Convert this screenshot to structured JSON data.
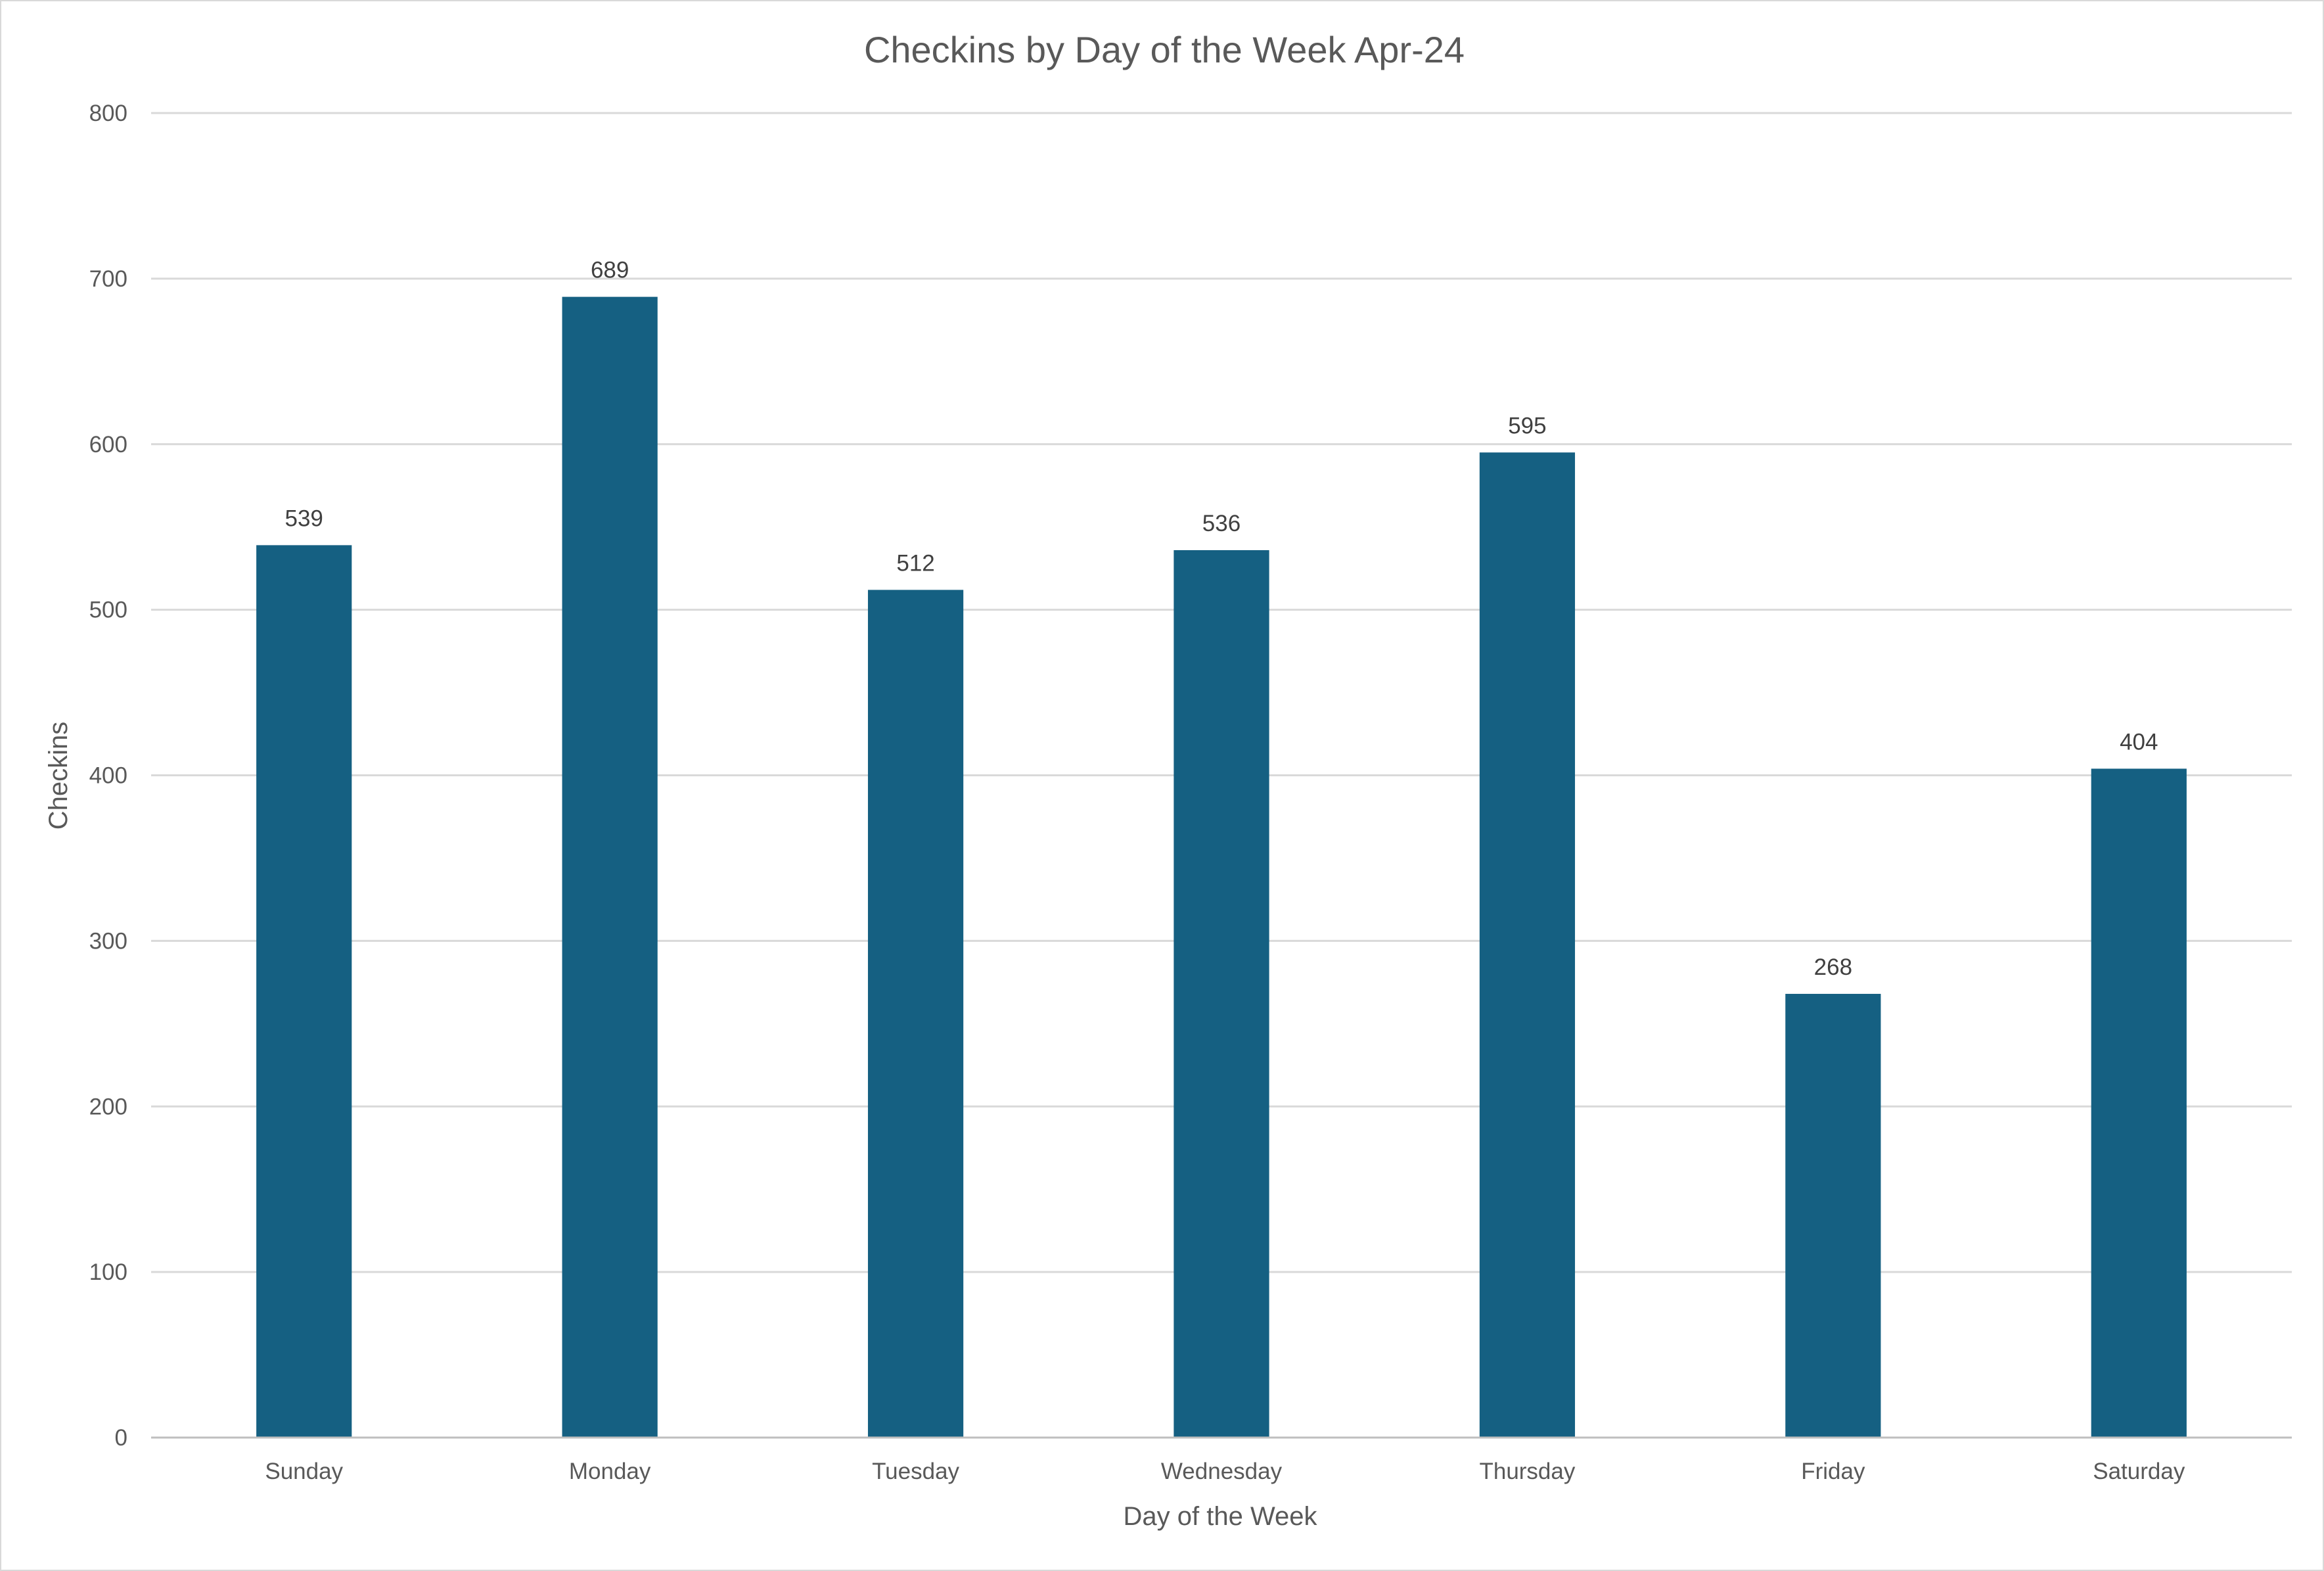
{
  "chart_data": {
    "type": "bar",
    "title": "Checkins by Day of the Week Apr-24",
    "xlabel": "Day of the Week",
    "ylabel": "Checkins",
    "categories": [
      "Sunday",
      "Monday",
      "Tuesday",
      "Wednesday",
      "Thursday",
      "Friday",
      "Saturday"
    ],
    "values": [
      539,
      689,
      512,
      536,
      595,
      268,
      404
    ],
    "data_labels": [
      "539",
      "689",
      "512",
      "536",
      "595",
      "268",
      "404"
    ],
    "ylim": [
      0,
      800
    ],
    "yticks": [
      0,
      100,
      200,
      300,
      400,
      500,
      600,
      700,
      800
    ],
    "ytick_labels": [
      "0",
      "100",
      "200",
      "300",
      "400",
      "500",
      "600",
      "700",
      "800"
    ],
    "grid": "horizontal",
    "legend": "none",
    "bar_color": "#156082"
  }
}
